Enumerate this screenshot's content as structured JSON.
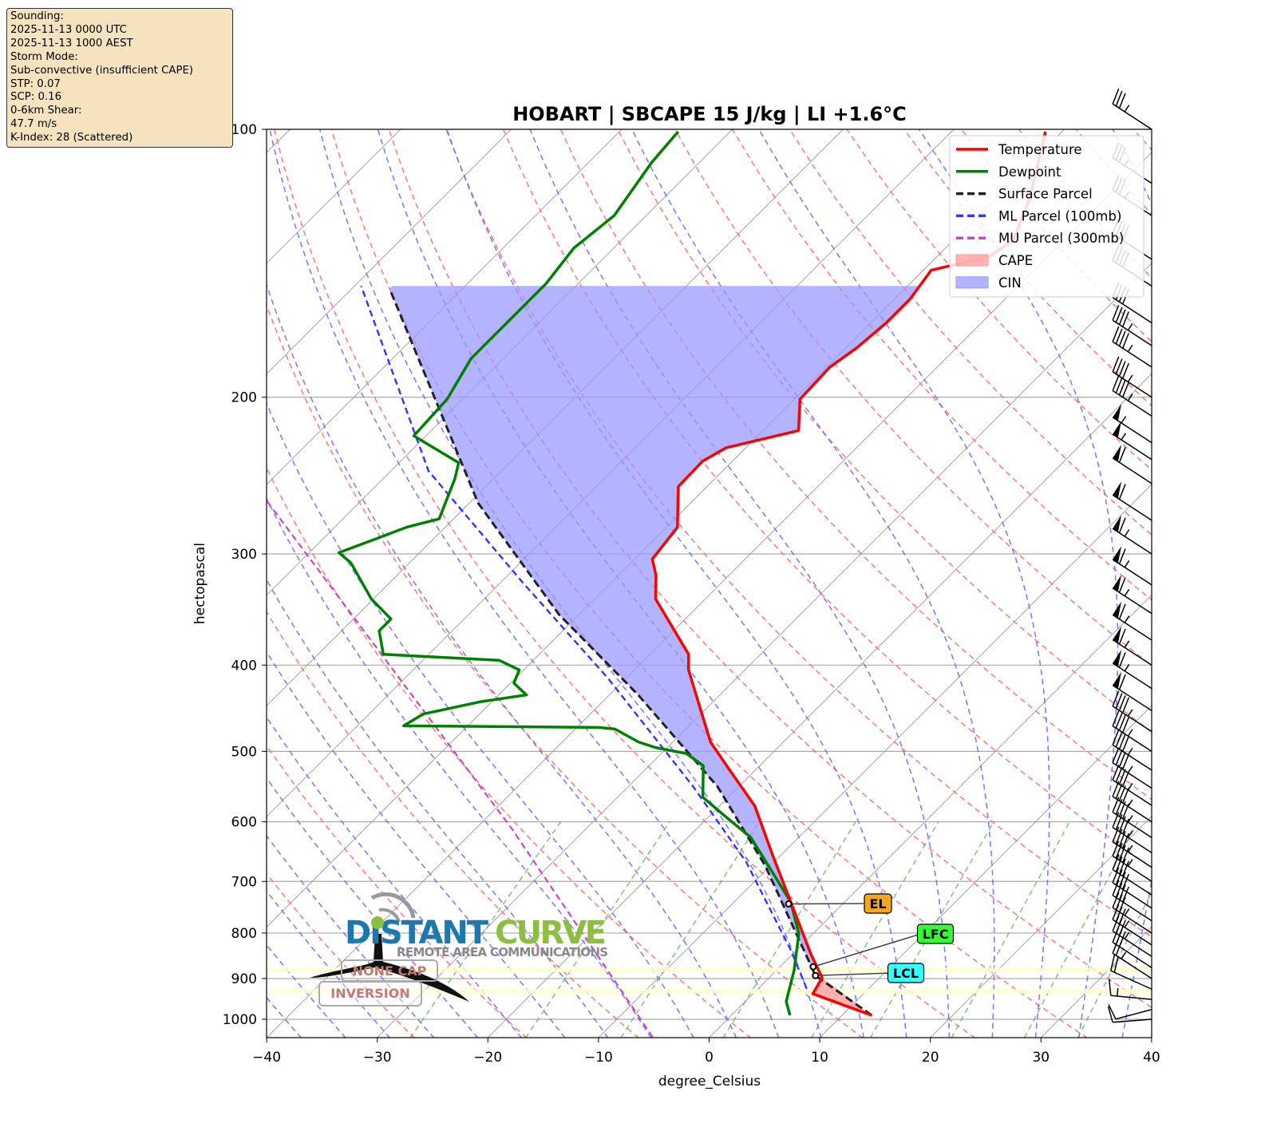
{
  "info_box": {
    "lines": [
      "Sounding:",
      "2025-11-13 0000 UTC",
      "2025-11-13 1000 AEST",
      "Storm Mode:",
      "Sub-convective (insufficient CAPE)",
      "STP: 0.07",
      "SCP: 0.16",
      "0-6km Shear:",
      "47.7 m/s",
      "K-Index: 28 (Scattered)"
    ]
  },
  "logo": {
    "text1": "DISTANT",
    "text2": "CURVE",
    "tagline": "REMOTE AREA COMMUNICATIONS"
  },
  "overlay_labels": {
    "cap": "NONE CAP",
    "inversion": "INVERSION"
  },
  "chart_data": {
    "type": "skew-t",
    "title": "HOBART | SBCAPE 15 J/kg | LI +1.6°C",
    "xlabel": "degree_Celsius",
    "ylabel": "hectopascal",
    "xlim": [
      -40,
      40
    ],
    "ylim": [
      1050,
      100
    ],
    "y_scale": "log",
    "xticks": [
      -40,
      -30,
      -20,
      -10,
      0,
      10,
      20,
      30,
      40
    ],
    "yticks": [
      100,
      200,
      300,
      400,
      500,
      600,
      700,
      800,
      900,
      1000
    ],
    "legend": {
      "placement": "top-right",
      "entries": [
        {
          "label": "Temperature",
          "color": "#ff0000",
          "style": "solid"
        },
        {
          "label": "Dewpoint",
          "color": "#008000",
          "style": "solid"
        },
        {
          "label": "Surface Parcel",
          "color": "#222222",
          "style": "dashed"
        },
        {
          "label": "ML Parcel (100mb)",
          "color": "#3333ff",
          "style": "dashed"
        },
        {
          "label": "MU Parcel (300mb)",
          "color": "#cc44cc",
          "style": "dashed"
        },
        {
          "label": "CAPE",
          "color": "#ff9999",
          "style": "fill"
        },
        {
          "label": "CIN",
          "color": "#9999ff",
          "style": "fill"
        }
      ]
    },
    "temperature": [
      [
        990,
        12.7
      ],
      [
        955,
        8.0
      ],
      [
        936,
        5.4
      ],
      [
        898,
        4.8
      ],
      [
        844,
        1.6
      ],
      [
        738,
        -4.9
      ],
      [
        652,
        -10.9
      ],
      [
        576,
        -16.8
      ],
      [
        525,
        -22.3
      ],
      [
        488,
        -26.6
      ],
      [
        450,
        -30.3
      ],
      [
        405,
        -35.1
      ],
      [
        389,
        -36.5
      ],
      [
        337,
        -44.5
      ],
      [
        317,
        -46.6
      ],
      [
        304,
        -48.4
      ],
      [
        280,
        -49.0
      ],
      [
        252,
        -52.6
      ],
      [
        236,
        -52.7
      ],
      [
        228,
        -51.8
      ],
      [
        218,
        -46.8
      ],
      [
        201,
        -49.5
      ],
      [
        185,
        -49.7
      ],
      [
        176,
        -49.0
      ],
      [
        165,
        -48.6
      ],
      [
        155,
        -48.6
      ],
      [
        144,
        -49.3
      ],
      [
        139,
        -45.3
      ],
      [
        133,
        -44.6
      ],
      [
        120,
        -46.8
      ],
      [
        100.6,
        -51.5
      ]
    ],
    "dewpoint": [
      [
        990,
        5.3
      ],
      [
        955,
        3.7
      ],
      [
        881,
        1.6
      ],
      [
        801,
        -1.3
      ],
      [
        738,
        -4.9
      ],
      [
        666,
        -10.7
      ],
      [
        625,
        -14.3
      ],
      [
        588,
        -19.0
      ],
      [
        563,
        -22.3
      ],
      [
        519,
        -25.1
      ],
      [
        503,
        -27.7
      ],
      [
        495,
        -31.1
      ],
      [
        488,
        -33.1
      ],
      [
        472,
        -36.4
      ],
      [
        470,
        -38.0
      ],
      [
        468,
        -55.8
      ],
      [
        454,
        -55.1
      ],
      [
        440,
        -51.1
      ],
      [
        432,
        -47.5
      ],
      [
        419,
        -49.7
      ],
      [
        405,
        -50.4
      ],
      [
        395,
        -53.1
      ],
      [
        389,
        -64.1
      ],
      [
        366,
        -66.6
      ],
      [
        355,
        -66.6
      ],
      [
        337,
        -70.2
      ],
      [
        307,
        -75.3
      ],
      [
        299,
        -77.3
      ],
      [
        289,
        -75.3
      ],
      [
        280,
        -73.5
      ],
      [
        274,
        -71.3
      ],
      [
        247,
        -73.5
      ],
      [
        237,
        -74.6
      ],
      [
        228,
        -78.2
      ],
      [
        221,
        -81.1
      ],
      [
        201,
        -81.4
      ],
      [
        181,
        -82.9
      ],
      [
        163,
        -82.9
      ],
      [
        149,
        -82.9
      ],
      [
        136,
        -83.6
      ],
      [
        125,
        -82.9
      ],
      [
        109,
        -84.3
      ],
      [
        100.6,
        -84.7
      ]
    ],
    "surface_parcel": [
      [
        990,
        12.7
      ],
      [
        893,
        4.0
      ],
      [
        673,
        -10.4
      ],
      [
        548,
        -21.9
      ],
      [
        432,
        -37.4
      ],
      [
        351,
        -51.8
      ],
      [
        263,
        -69.2
      ],
      [
        151,
        -96.6
      ]
    ],
    "ml_parcel": [
      [
        924,
        4.4
      ],
      [
        835,
        -0.6
      ],
      [
        666,
        -12.5
      ],
      [
        548,
        -24.1
      ],
      [
        414,
        -41.6
      ],
      [
        323,
        -58.0
      ],
      [
        242,
        -76.6
      ],
      [
        150,
        -99.4
      ]
    ],
    "mu_parcel": [
      [
        262,
        -88.4
      ],
      [
        611,
        -36.7
      ],
      [
        1050,
        -5.0
      ]
    ],
    "cin_top_hpa": 150,
    "levels": [
      {
        "label": "EL",
        "p": 742,
        "t": -4.9,
        "color": "#f5a623"
      },
      {
        "label": "LFC",
        "p": 873,
        "t": 3.0,
        "color": "#33ff33"
      },
      {
        "label": "LCL",
        "p": 893,
        "t": 4.0,
        "color": "#33ffff"
      }
    ],
    "wind_barbs_kt": [
      [
        1000,
        10,
        250
      ],
      [
        975,
        10,
        240
      ],
      [
        950,
        15,
        260
      ],
      [
        925,
        20,
        280
      ],
      [
        900,
        25,
        290
      ],
      [
        875,
        30,
        290
      ],
      [
        850,
        35,
        290
      ],
      [
        825,
        35,
        290
      ],
      [
        800,
        35,
        290
      ],
      [
        775,
        40,
        290
      ],
      [
        750,
        40,
        290
      ],
      [
        725,
        40,
        290
      ],
      [
        700,
        45,
        290
      ],
      [
        675,
        45,
        290
      ],
      [
        650,
        45,
        290
      ],
      [
        625,
        45,
        290
      ],
      [
        600,
        45,
        290
      ],
      [
        575,
        45,
        290
      ],
      [
        550,
        45,
        290
      ],
      [
        525,
        45,
        290
      ],
      [
        500,
        45,
        290
      ],
      [
        475,
        45,
        290
      ],
      [
        450,
        60,
        290
      ],
      [
        425,
        65,
        290
      ],
      [
        400,
        65,
        290
      ],
      [
        375,
        65,
        290
      ],
      [
        350,
        65,
        290
      ],
      [
        325,
        65,
        290
      ],
      [
        300,
        65,
        290
      ],
      [
        275,
        60,
        290
      ],
      [
        250,
        60,
        290
      ],
      [
        235,
        55,
        290
      ],
      [
        225,
        55,
        290
      ],
      [
        210,
        45,
        290
      ],
      [
        200,
        45,
        290
      ],
      [
        185,
        45,
        290
      ],
      [
        175,
        45,
        290
      ],
      [
        165,
        40,
        290
      ],
      [
        150,
        40,
        290
      ],
      [
        140,
        40,
        290
      ],
      [
        125,
        35,
        290
      ],
      [
        115,
        35,
        290
      ],
      [
        100,
        35,
        290
      ]
    ]
  }
}
